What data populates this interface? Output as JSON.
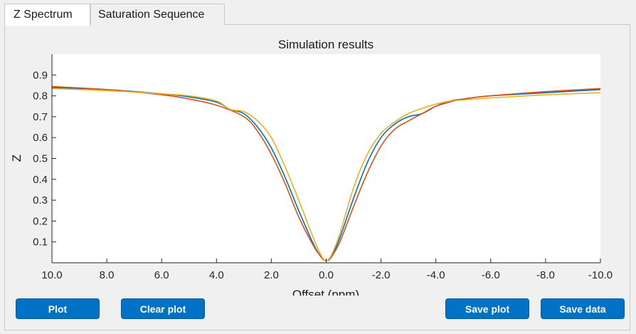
{
  "tabs": [
    {
      "label": "Z Spectrum",
      "active": true
    },
    {
      "label": "Saturation Sequence",
      "active": false
    }
  ],
  "buttons": {
    "plot": "Plot",
    "clear_plot": "Clear plot",
    "save_plot": "Save plot",
    "save_data": "Save data"
  },
  "colors": {
    "accent": "#0072c6",
    "series": [
      "#0072bd",
      "#d95319",
      "#edb120"
    ]
  },
  "chart_data": {
    "type": "line",
    "title": "Simulation results",
    "xlabel": "Offset (ppm)",
    "ylabel": "Z",
    "xlim": [
      10,
      -10
    ],
    "ylim": [
      0,
      1.0
    ],
    "x_reversed": true,
    "xticks": [
      10,
      8,
      6,
      4,
      2,
      0,
      -2,
      -4,
      -6,
      -8,
      -10
    ],
    "xtick_labels": [
      "10.0",
      "8.0",
      "6.0",
      "4.0",
      "2.0",
      "0.0",
      "-2.0",
      "-4.0",
      "-6.0",
      "-8.0",
      "-10.0"
    ],
    "yticks": [
      0.1,
      0.2,
      0.3,
      0.4,
      0.5,
      0.6,
      0.7,
      0.8,
      0.9
    ],
    "ytick_labels": [
      "0.1",
      "0.2",
      "0.3",
      "0.4",
      "0.5",
      "0.6",
      "0.7",
      "0.8",
      "0.9"
    ],
    "grid": false,
    "legend": false,
    "series": [
      {
        "color": "#0072bd",
        "points": [
          [
            10,
            0.84
          ],
          [
            8,
            0.83
          ],
          [
            6,
            0.81
          ],
          [
            5,
            0.795
          ],
          [
            4,
            0.77
          ],
          [
            3.5,
            0.735
          ],
          [
            3,
            0.715
          ],
          [
            2.5,
            0.65
          ],
          [
            2,
            0.55
          ],
          [
            1.5,
            0.41
          ],
          [
            1,
            0.25
          ],
          [
            0.5,
            0.1
          ],
          [
            0.2,
            0.03
          ],
          [
            0,
            0.01
          ],
          [
            -0.2,
            0.03
          ],
          [
            -0.5,
            0.12
          ],
          [
            -1,
            0.31
          ],
          [
            -1.5,
            0.48
          ],
          [
            -2,
            0.6
          ],
          [
            -2.5,
            0.665
          ],
          [
            -3,
            0.7
          ],
          [
            -3.5,
            0.715
          ],
          [
            -4,
            0.75
          ],
          [
            -4.5,
            0.775
          ],
          [
            -5,
            0.785
          ],
          [
            -6,
            0.8
          ],
          [
            -8,
            0.815
          ],
          [
            -10,
            0.83
          ]
        ]
      },
      {
        "color": "#d95319",
        "points": [
          [
            10,
            0.845
          ],
          [
            8,
            0.83
          ],
          [
            6,
            0.805
          ],
          [
            5,
            0.785
          ],
          [
            4,
            0.755
          ],
          [
            3,
            0.7
          ],
          [
            2.5,
            0.63
          ],
          [
            2,
            0.52
          ],
          [
            1.5,
            0.38
          ],
          [
            1,
            0.22
          ],
          [
            0.5,
            0.09
          ],
          [
            0.2,
            0.03
          ],
          [
            0,
            0.01
          ],
          [
            -0.2,
            0.03
          ],
          [
            -0.5,
            0.1
          ],
          [
            -1,
            0.27
          ],
          [
            -1.5,
            0.43
          ],
          [
            -2,
            0.56
          ],
          [
            -2.5,
            0.64
          ],
          [
            -3,
            0.68
          ],
          [
            -3.5,
            0.715
          ],
          [
            -4,
            0.75
          ],
          [
            -4.5,
            0.77
          ],
          [
            -5,
            0.785
          ],
          [
            -6,
            0.8
          ],
          [
            -8,
            0.82
          ],
          [
            -10,
            0.835
          ]
        ]
      },
      {
        "color": "#edb120",
        "points": [
          [
            10,
            0.835
          ],
          [
            8,
            0.825
          ],
          [
            6,
            0.81
          ],
          [
            5,
            0.8
          ],
          [
            4,
            0.775
          ],
          [
            3.5,
            0.735
          ],
          [
            3,
            0.725
          ],
          [
            2.5,
            0.68
          ],
          [
            2,
            0.6
          ],
          [
            1.5,
            0.46
          ],
          [
            1,
            0.3
          ],
          [
            0.5,
            0.13
          ],
          [
            0.2,
            0.04
          ],
          [
            0,
            0.01
          ],
          [
            -0.2,
            0.04
          ],
          [
            -0.5,
            0.14
          ],
          [
            -1,
            0.36
          ],
          [
            -1.5,
            0.52
          ],
          [
            -2,
            0.62
          ],
          [
            -2.5,
            0.675
          ],
          [
            -3,
            0.715
          ],
          [
            -3.5,
            0.74
          ],
          [
            -4,
            0.76
          ],
          [
            -4.5,
            0.775
          ],
          [
            -5,
            0.78
          ],
          [
            -6,
            0.79
          ],
          [
            -8,
            0.805
          ],
          [
            -10,
            0.815
          ]
        ]
      }
    ]
  }
}
